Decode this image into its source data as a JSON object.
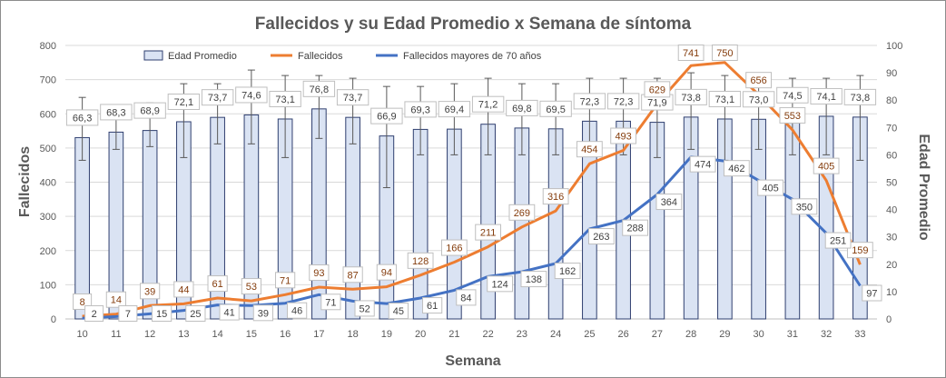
{
  "chart_data": {
    "type": "bar+line",
    "title": "Fallecidos y su Edad Promedio  x Semana de síntoma",
    "xlabel": "Semana",
    "ylabel_left": "Fallecidos",
    "ylabel_right": "Edad Promedio",
    "ylim_left": [
      0,
      800
    ],
    "ylim_right": [
      0,
      100
    ],
    "left_ticks": [
      "0",
      "100",
      "200",
      "300",
      "400",
      "500",
      "600",
      "700",
      "800"
    ],
    "right_ticks": [
      "0",
      "10",
      "20",
      "30",
      "40",
      "50",
      "60",
      "70",
      "80",
      "90",
      "100"
    ],
    "categories": [
      "10",
      "11",
      "12",
      "13",
      "14",
      "15",
      "16",
      "17",
      "18",
      "19",
      "20",
      "21",
      "22",
      "23",
      "24",
      "25",
      "26",
      "27",
      "28",
      "29",
      "30",
      "31",
      "32",
      "33"
    ],
    "legend": {
      "bar": "Edad Promedio",
      "line1": "Fallecidos",
      "line2": "Fallecidos mayores de 70 años"
    },
    "edad_promedio": {
      "values": [
        66.3,
        68.3,
        68.9,
        72.1,
        73.7,
        74.6,
        73.1,
        76.8,
        73.7,
        66.9,
        69.3,
        69.4,
        71.2,
        69.8,
        69.5,
        72.3,
        72.3,
        71.9,
        73.8,
        73.1,
        73.0,
        74.5,
        74.1,
        73.8
      ],
      "labels": [
        "66,3",
        "68,3",
        "68,9",
        "72,1",
        "73,7",
        "74,6",
        "73,1",
        "76,8",
        "73,7",
        "66,9",
        "69,3",
        "69,4",
        "71,2",
        "69,8",
        "69,5",
        "72,3",
        "72,3",
        "71,9",
        "73,8",
        "73,1",
        "73,0",
        "74,5",
        "74,1",
        "73,8"
      ],
      "err_low": [
        58,
        62,
        63,
        59,
        64,
        64,
        59,
        66,
        64,
        48,
        60,
        60,
        60,
        60,
        60,
        60,
        60,
        59,
        62,
        58,
        62,
        60,
        60,
        58
      ],
      "err_high": [
        81,
        78,
        79,
        86,
        86,
        91,
        89,
        89,
        88,
        85,
        85,
        86,
        88,
        86,
        86,
        88,
        88,
        88,
        90,
        89,
        88,
        88,
        88,
        89
      ]
    },
    "fallecidos": {
      "values": [
        8,
        14,
        39,
        44,
        61,
        53,
        71,
        93,
        87,
        94,
        128,
        166,
        211,
        269,
        316,
        454,
        493,
        629,
        741,
        750,
        656,
        553,
        405,
        159
      ],
      "labels": [
        "8",
        "14",
        "39",
        "44",
        "61",
        "53",
        "71",
        "93",
        "87",
        "94",
        "128",
        "166",
        "211",
        "269",
        "316",
        "454",
        "493",
        "629",
        "741",
        "750",
        "656",
        "553",
        "405",
        "159"
      ]
    },
    "fallecidos_mayores_70": {
      "values": [
        2,
        7,
        15,
        25,
        41,
        39,
        46,
        71,
        52,
        45,
        61,
        84,
        124,
        138,
        162,
        263,
        288,
        364,
        474,
        462,
        405,
        350,
        251,
        97
      ],
      "labels": [
        "2",
        "7",
        "15",
        "25",
        "41",
        "39",
        "46",
        "71",
        "52",
        "45",
        "61",
        "84",
        "124",
        "138",
        "162",
        "263",
        "288",
        "364",
        "474",
        "462",
        "405",
        "350",
        "251",
        "97"
      ]
    },
    "colors": {
      "bar_fill": "#dae3f3",
      "bar_stroke": "#2f3f6f",
      "fallecidos": "#ed7d31",
      "mayores70": "#4472c4",
      "grid": "#d9d9d9"
    }
  }
}
